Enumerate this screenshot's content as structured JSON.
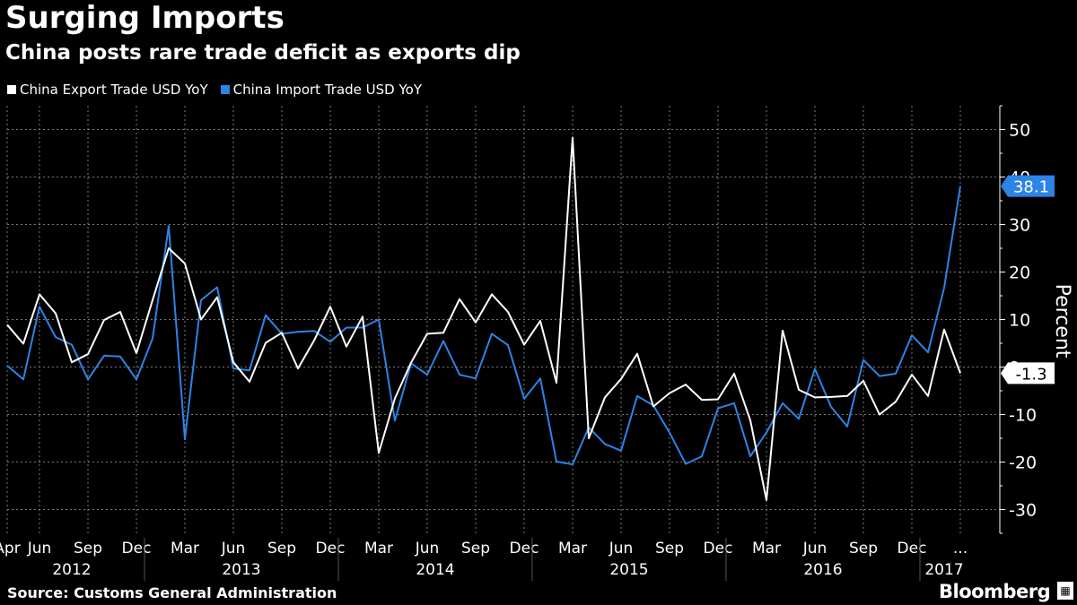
{
  "header": {
    "title": "Surging Imports",
    "subtitle": "China posts rare trade deficit as exports dip"
  },
  "footer": {
    "source": "Source: Customs General Administration",
    "brand": "Bloomberg",
    "brand_icon": "bloomberg-terminal-icon"
  },
  "colors": {
    "background": "#000000",
    "export": "#ffffff",
    "import": "#2c84e6",
    "grid": "#7a7a7a"
  },
  "chart_data": {
    "type": "line",
    "ylabel": "Percent",
    "ylim": [
      -35,
      55
    ],
    "yticks": [
      -30,
      -20,
      -10,
      0,
      10,
      20,
      30,
      40,
      50
    ],
    "grid": true,
    "legend_position": "top-left",
    "month_ticks": [
      "Apr",
      "Jun",
      "Sep",
      "Dec",
      "Mar",
      "Jun",
      "Sep",
      "Dec",
      "Mar",
      "Jun",
      "Sep",
      "Dec",
      "Mar",
      "Jun",
      "Sep",
      "Dec",
      "Mar",
      "Jun",
      "Sep",
      "Dec",
      "..."
    ],
    "month_tick_index": [
      0,
      2,
      5,
      8,
      11,
      14,
      17,
      20,
      23,
      26,
      29,
      32,
      35,
      38,
      41,
      44,
      47,
      50,
      53,
      56,
      59
    ],
    "years": [
      {
        "label": "2012",
        "start": 0,
        "end": 8
      },
      {
        "label": "2013",
        "start": 9,
        "end": 20
      },
      {
        "label": "2014",
        "start": 21,
        "end": 32
      },
      {
        "label": "2015",
        "start": 33,
        "end": 44
      },
      {
        "label": "2016",
        "start": 45,
        "end": 56
      },
      {
        "label": "2017",
        "start": 57,
        "end": 59
      }
    ],
    "series": [
      {
        "name": "China Export Trade USD YoY",
        "color": "#ffffff",
        "last_label": "-1.3",
        "values": [
          8.9,
          4.9,
          15.3,
          11.3,
          1.0,
          2.7,
          9.9,
          11.6,
          2.9,
          14.1,
          25.0,
          21.8,
          10.0,
          14.7,
          1.0,
          -3.1,
          5.1,
          7.2,
          -0.3,
          5.6,
          12.7,
          4.3,
          10.6,
          -18.1,
          -6.6,
          0.9,
          7.0,
          7.2,
          14.3,
          9.4,
          15.3,
          11.6,
          4.7,
          9.7,
          -3.3,
          48.3,
          -15.0,
          -6.4,
          -2.5,
          2.8,
          -8.3,
          -5.5,
          -3.7,
          -6.9,
          -6.8,
          -1.4,
          -11.2,
          -28.0,
          7.7,
          -4.8,
          -6.4,
          -6.3,
          -6.1,
          -2.9,
          -10.0,
          -7.3,
          -1.6,
          -6.1,
          7.9,
          -1.3
        ]
      },
      {
        "name": "China Import Trade USD YoY",
        "color": "#2c84e6",
        "last_label": "38.1",
        "values": [
          0.3,
          -2.6,
          12.7,
          6.3,
          4.7,
          -2.6,
          2.4,
          2.2,
          -2.6,
          6.0,
          29.7,
          -15.2,
          14.1,
          16.8,
          -0.3,
          -0.7,
          10.9,
          7.0,
          7.4,
          7.6,
          5.3,
          8.3,
          8.3,
          10.0,
          -11.3,
          0.8,
          -1.6,
          5.5,
          -1.6,
          -2.4,
          7.0,
          4.6,
          -6.7,
          -2.4,
          -19.9,
          -20.5,
          -12.7,
          -16.2,
          -17.6,
          -6.1,
          -8.1,
          -13.8,
          -20.4,
          -18.8,
          -8.7,
          -7.6,
          -18.8,
          -13.8,
          -7.6,
          -10.9,
          -0.4,
          -8.4,
          -12.5,
          1.5,
          -1.9,
          -1.4,
          6.7,
          3.1,
          16.7,
          38.1
        ]
      }
    ]
  }
}
